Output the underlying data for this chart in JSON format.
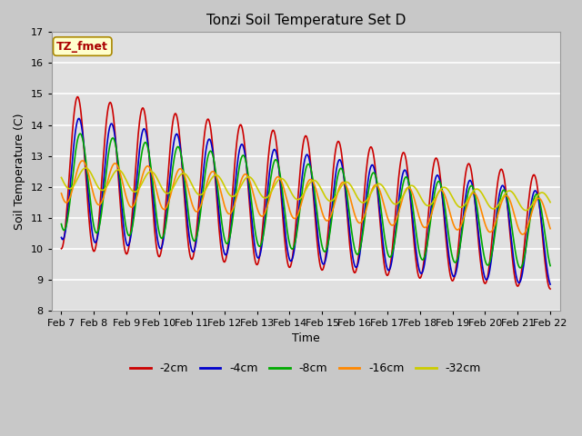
{
  "title": "Tonzi Soil Temperature Set D",
  "xlabel": "Time",
  "ylabel": "Soil Temperature (C)",
  "ylim": [
    8.0,
    17.0
  ],
  "yticks": [
    8.0,
    9.0,
    10.0,
    11.0,
    12.0,
    13.0,
    14.0,
    15.0,
    16.0,
    17.0
  ],
  "xtick_labels": [
    "Feb 7",
    "Feb 8",
    "Feb 9",
    "Feb 10",
    "Feb 11",
    "Feb 12",
    "Feb 13",
    "Feb 14",
    "Feb 15",
    "Feb 16",
    "Feb 17",
    "Feb 18",
    "Feb 19",
    "Feb 20",
    "Feb 21",
    "Feb 22"
  ],
  "series_labels": [
    "-2cm",
    "-4cm",
    "-8cm",
    "-16cm",
    "-32cm"
  ],
  "series_colors": [
    "#cc0000",
    "#0000cc",
    "#00aa00",
    "#ff8800",
    "#cccc00"
  ],
  "annotation_text": "TZ_fmet",
  "annotation_color": "#aa0000",
  "annotation_bg": "#ffffcc",
  "annotation_edge": "#aa8800",
  "fig_bg": "#c8c8c8",
  "plot_bg": "#e0e0e0",
  "grid_color": "#ffffff",
  "linewidth": 1.2
}
